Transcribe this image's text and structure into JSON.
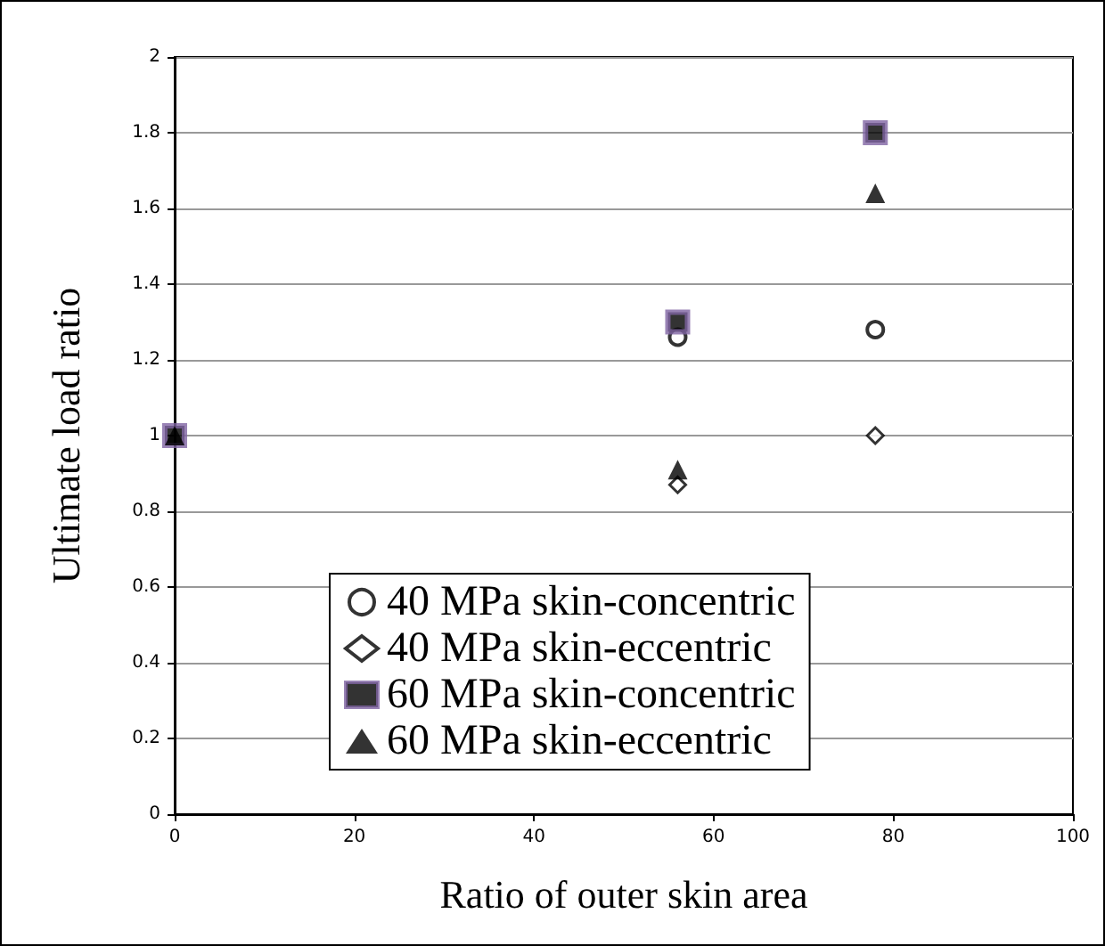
{
  "chart_data": {
    "type": "scatter",
    "xlabel": "Ratio of outer skin area",
    "ylabel": "Ultimate load ratio",
    "xlim": [
      0,
      100
    ],
    "xticks": [
      0,
      20,
      40,
      60,
      80,
      100
    ],
    "ylim": [
      0,
      2
    ],
    "yticks": [
      0,
      0.2,
      0.4,
      0.6,
      0.8,
      1,
      1.2,
      1.4,
      1.6,
      1.8,
      2
    ],
    "grid": "y",
    "legend": "bottom",
    "series": [
      {
        "name": "40 MPa skin-concentric",
        "color": "#000000",
        "marker": "circle",
        "x": [
          null,
          56,
          78
        ],
        "values": [
          null,
          1.26,
          1.28
        ]
      },
      {
        "name": "40 MPa skin-eccentric",
        "color": "#000000",
        "marker": "diamond",
        "x": [
          null,
          56,
          78
        ],
        "values": [
          null,
          0.87,
          1.0
        ]
      },
      {
        "name": "60 MPa skin-concentric",
        "color": "#8064a2",
        "marker": "square",
        "x": [
          0,
          56,
          78
        ],
        "values": [
          1,
          1.3,
          1.8
        ]
      },
      {
        "name": "60 MPa skin-eccentric",
        "color": "#000000",
        "marker": "triangle",
        "x": [
          0,
          56,
          78
        ],
        "values": [
          1,
          0.91,
          1.64
        ]
      }
    ]
  }
}
